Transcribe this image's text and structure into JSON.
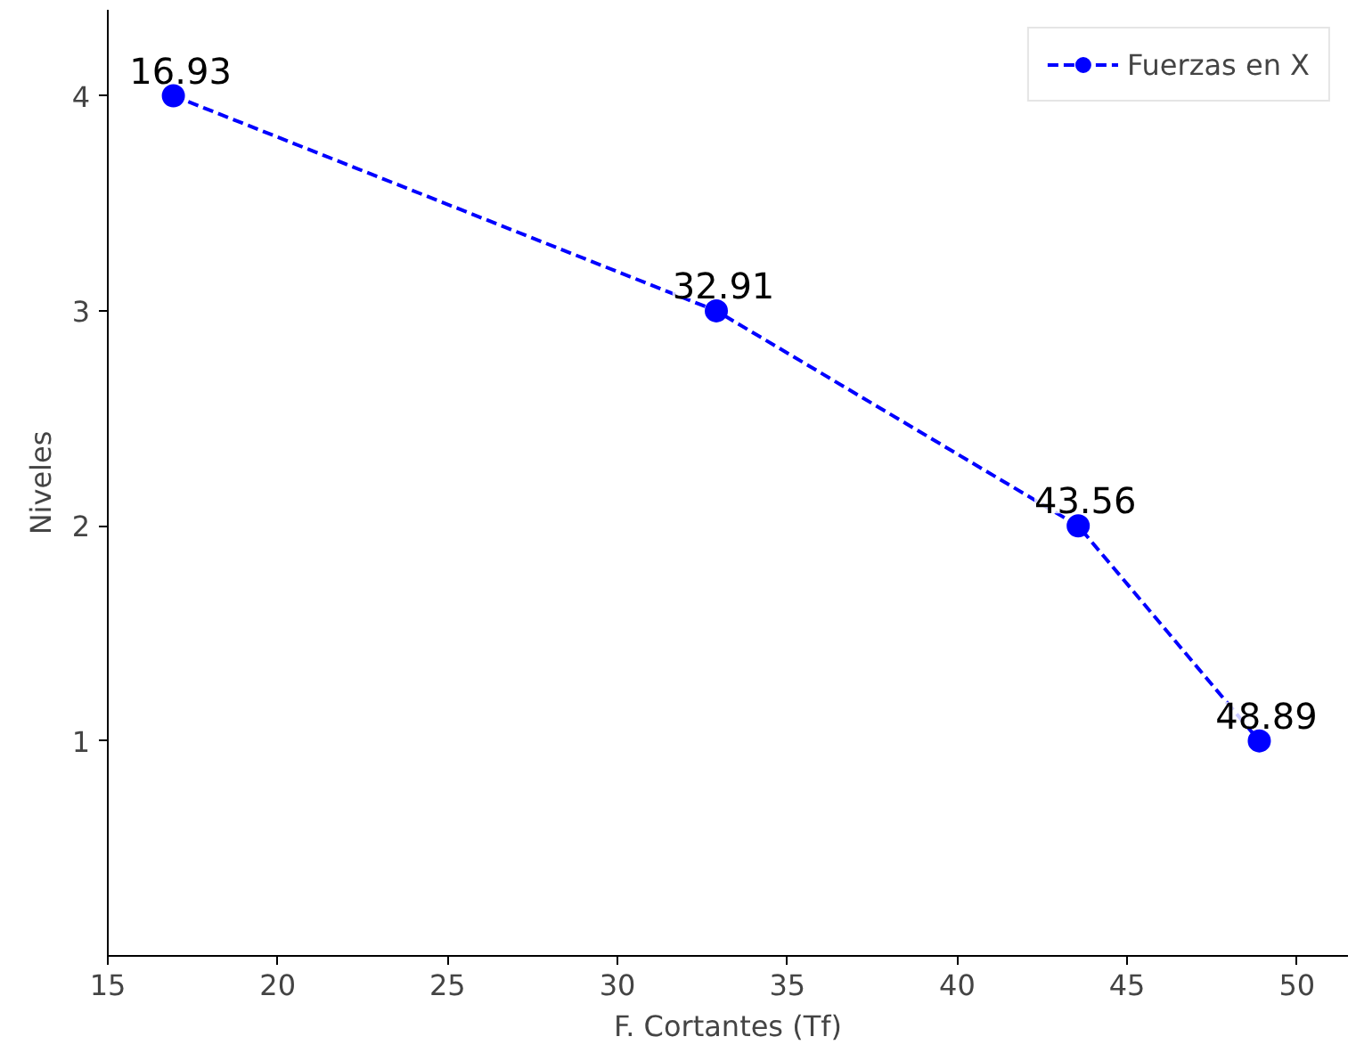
{
  "chart_data": {
    "type": "line",
    "xlabel": "F. Cortantes (Tf)",
    "ylabel": "Niveles",
    "series": [
      {
        "name": "Fuerzas en X",
        "color": "#0000ff",
        "x": [
          16.93,
          32.91,
          43.56,
          48.89
        ],
        "values": [
          4,
          3,
          2,
          1
        ]
      }
    ],
    "annotations": [
      {
        "text": "16.93",
        "x": 16.93,
        "y": 4
      },
      {
        "text": "32.91",
        "x": 32.91,
        "y": 3
      },
      {
        "text": "43.56",
        "x": 43.56,
        "y": 2
      },
      {
        "text": "48.89",
        "x": 48.89,
        "y": 1
      }
    ],
    "xlim": [
      15,
      51.5
    ],
    "ylim": [
      0,
      4.4
    ],
    "xticks": [
      15,
      20,
      25,
      30,
      35,
      40,
      45,
      50
    ],
    "yticks": [
      1,
      2,
      3,
      4
    ],
    "grid": false,
    "legend": "top right",
    "marker": "circle",
    "line_style": "dashed"
  }
}
